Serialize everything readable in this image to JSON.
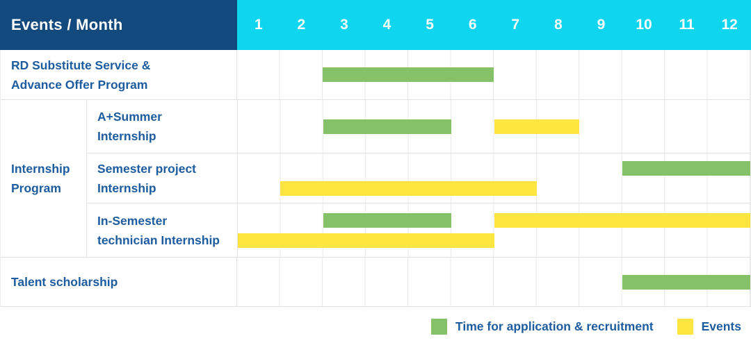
{
  "header": {
    "title": "Events / Month"
  },
  "colors": {
    "header_navy": "#134A7E",
    "header_cyan": "#0FD6EE",
    "label_blue": "#1D5C9F",
    "application_green": "#85C168",
    "events_yellow": "#FFE53F",
    "gridline_gray": "#E9E9E9"
  },
  "chart_data": {
    "type": "gantt",
    "title": "Events / Month",
    "x_axis": {
      "label": "Month",
      "range": [
        1,
        12
      ]
    },
    "months": [
      "1",
      "2",
      "3",
      "4",
      "5",
      "6",
      "7",
      "8",
      "9",
      "10",
      "11",
      "12"
    ],
    "group": {
      "label_lines": [
        "Internship",
        "Program"
      ]
    },
    "series": {
      "application": {
        "label": "Time for application & recruitment",
        "color": "#85C168"
      },
      "events": {
        "label": "Events",
        "color": "#FFE53F"
      }
    },
    "legend_position": "bottom-right",
    "rows": [
      {
        "label_lines": [
          "RD Substitute Service &",
          "Advance Offer Program"
        ],
        "in_group": false,
        "lines": [
          [
            {
              "series": "application",
              "start_month": 3,
              "end_month": 6
            }
          ]
        ]
      },
      {
        "label_lines": [
          "A+Summer",
          "Internship"
        ],
        "in_group": true,
        "lines": [
          [
            {
              "series": "application",
              "start_month": 3,
              "end_month": 5
            },
            {
              "series": "events",
              "start_month": 7,
              "end_month": 8
            }
          ]
        ]
      },
      {
        "label_lines": [
          "Semester project",
          "Internship"
        ],
        "in_group": true,
        "lines": [
          [
            {
              "series": "application",
              "start_month": 10,
              "end_month": 12
            }
          ],
          [
            {
              "series": "events",
              "start_month": 2,
              "end_month": 7
            }
          ]
        ]
      },
      {
        "label_lines": [
          "In-Semester",
          "technician Internship"
        ],
        "in_group": true,
        "lines": [
          [
            {
              "series": "application",
              "start_month": 3,
              "end_month": 5
            },
            {
              "series": "events",
              "start_month": 7,
              "end_month": 12
            }
          ],
          [
            {
              "series": "events",
              "start_month": 1,
              "end_month": 6
            }
          ]
        ]
      },
      {
        "label_lines": [
          "Talent scholarship"
        ],
        "in_group": false,
        "lines": [
          [
            {
              "series": "application",
              "start_month": 10,
              "end_month": 12
            }
          ]
        ]
      }
    ]
  }
}
